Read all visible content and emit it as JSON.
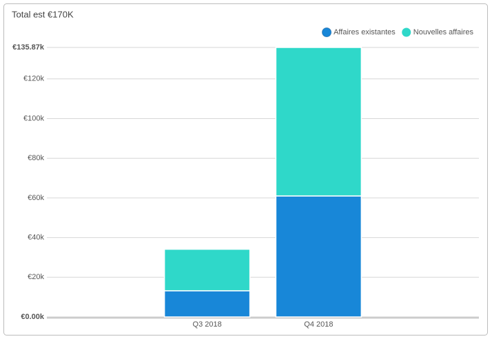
{
  "chart_data": {
    "type": "stacked_bar",
    "title": "Total est €170K",
    "categories": [
      null,
      "Q3 2018",
      "Q4 2018",
      null
    ],
    "series": [
      {
        "name": "Affaires existantes",
        "color": "#1887d8",
        "values": [
          null,
          13.2,
          61.0,
          null
        ]
      },
      {
        "name": "Nouvelles affaires",
        "color": "#2fd8c9",
        "values": [
          null,
          20.93,
          74.87,
          null
        ]
      }
    ],
    "ylim": [
      0,
      135.87
    ],
    "yticks": [
      {
        "value": 0,
        "label": "€0.00k"
      },
      {
        "value": 20,
        "label": "€20k"
      },
      {
        "value": 40,
        "label": "€40k"
      },
      {
        "value": 60,
        "label": "€60k"
      },
      {
        "value": 80,
        "label": "€80k"
      },
      {
        "value": 100,
        "label": "€100k"
      },
      {
        "value": 120,
        "label": "€120k"
      },
      {
        "value": 135.87,
        "label": "€135.87k"
      }
    ],
    "grid": true,
    "legend": "top-right"
  }
}
